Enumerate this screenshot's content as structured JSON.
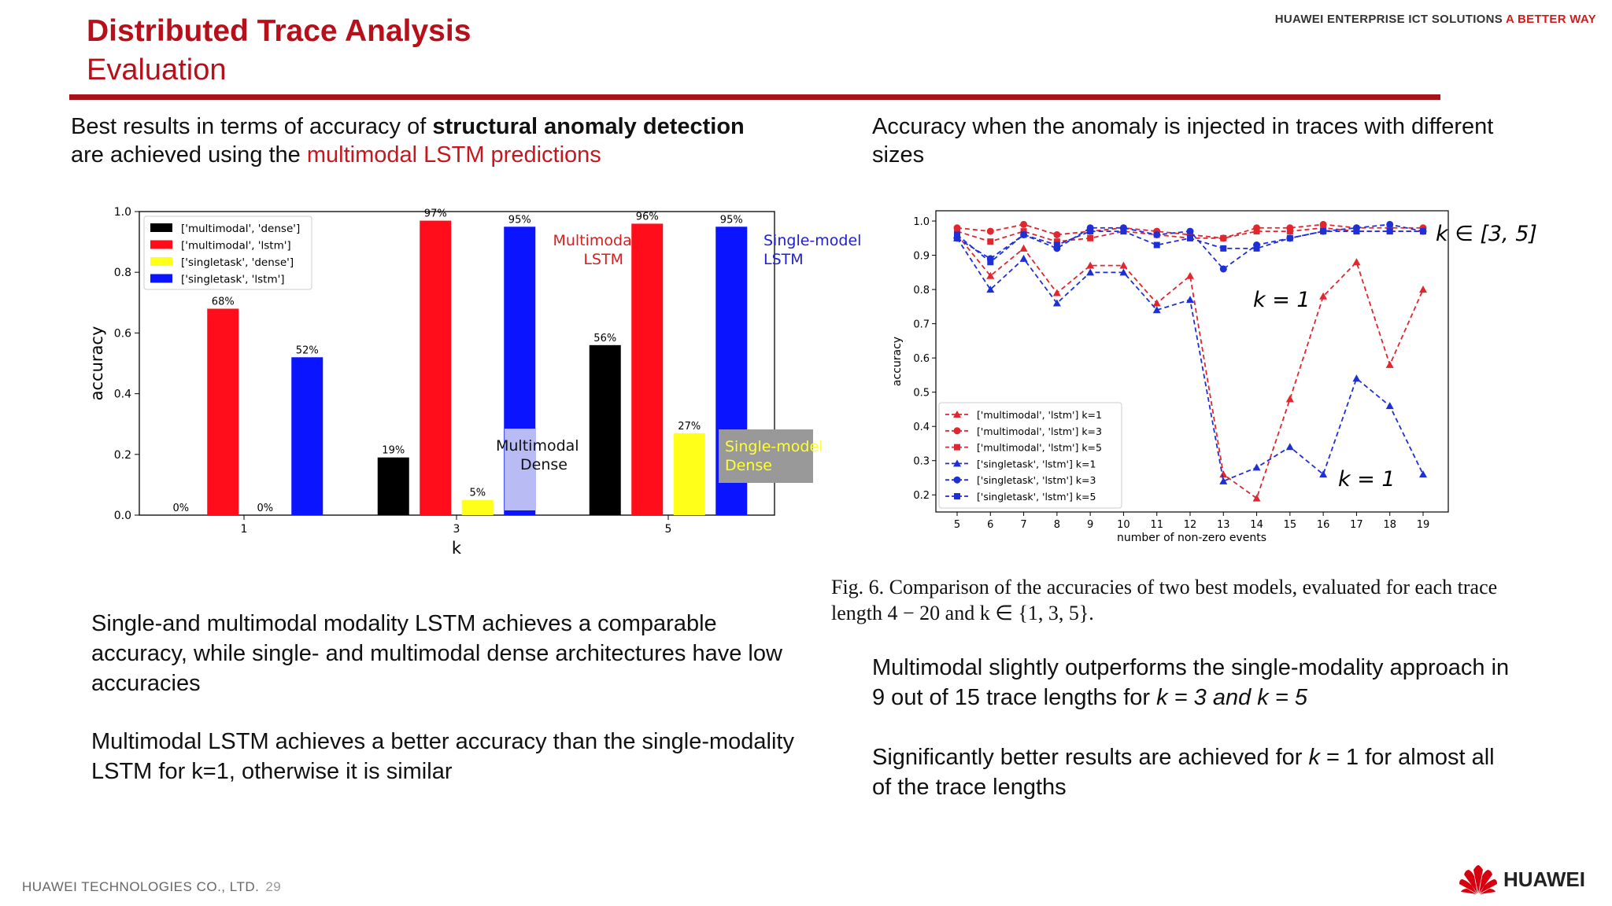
{
  "slide": {
    "title": "Distributed Trace Analysis",
    "subtitle": "Evaluation",
    "brand_top_prefix": "HUAWEI ENTERPRISE ICT SOLUTIONS ",
    "brand_top_highlight": "A BETTER WAY",
    "left_heading": {
      "p1": "Best results in terms of accuracy of ",
      "bold": "structural anomaly detection",
      "p2": " are achieved using the ",
      "red": "multimodal LSTM predictions"
    },
    "right_heading": "Accuracy when the anomaly is injected in traces with different sizes",
    "left_body_1": "Single-and multimodal modality LSTM achieves a comparable accuracy, while single- and multimodal dense architectures have low accuracies",
    "left_body_2": "Multimodal LSTM achieves a better accuracy than the single-modality LSTM for k=1, otherwise it is similar",
    "caption": "Fig. 6.  Comparison of the accuracies of two best models, evaluated for each trace length 4 − 20 and k ∈ {1, 3, 5}.",
    "right_body_1": {
      "p1": "Multimodal slightly outperforms the single-modality approach in 9 out of 15 trace lengths for ",
      "em": "k = 3 and k = 5"
    },
    "right_body_2": {
      "p1": "Significantly better results are achieved for ",
      "em": "k",
      "p2": " = 1 for almost all of the trace lengths"
    },
    "footer_company": "HUAWEI TECHNOLOGIES CO., LTD.",
    "page_number": "29",
    "logo_text": "HUAWEI"
  },
  "colors": {
    "brand_red": "#b8101a",
    "black": "#000000",
    "red": "#ff0d1a",
    "yellow": "#ffff1a",
    "blue": "#0a14ff",
    "line_red": "#e0262e",
    "line_blue": "#1f2fd6"
  },
  "chart_data": [
    {
      "type": "bar",
      "xlabel": "k",
      "ylabel": "accuracy",
      "ylim": [
        0,
        1.0
      ],
      "yticks": [
        "0.0",
        "0.2",
        "0.4",
        "0.6",
        "0.8",
        "1.0"
      ],
      "categories": [
        "1",
        "3",
        "5"
      ],
      "legend_position": "top-left",
      "series": [
        {
          "name": "['multimodal', 'dense']",
          "color": "#000000",
          "values": [
            0.0,
            0.19,
            0.56
          ],
          "labels": [
            "0%",
            "19%",
            "56%"
          ]
        },
        {
          "name": "['multimodal', 'lstm']",
          "color": "#ff0d1a",
          "values": [
            0.68,
            0.97,
            0.96
          ],
          "labels": [
            "68%",
            "97%",
            "96%"
          ]
        },
        {
          "name": "['singletask', 'dense']",
          "color": "#ffff1a",
          "values": [
            0.0,
            0.05,
            0.27
          ],
          "labels": [
            "0%",
            "5%",
            "27%"
          ]
        },
        {
          "name": "['singletask', 'lstm']",
          "color": "#0a14ff",
          "values": [
            0.52,
            0.95,
            0.95
          ],
          "labels": [
            "52%",
            "95%",
            "95%"
          ]
        }
      ],
      "annotations": [
        {
          "text": "Multimodal LSTM",
          "line1": "Multimodal",
          "line2": "LSTM",
          "color": "#d81e1e"
        },
        {
          "text": "Single-model LSTM",
          "line1": "Single-model",
          "line2": "LSTM",
          "color": "#2020d0"
        },
        {
          "text": "Multimodal Dense",
          "line1": "Multimodal",
          "line2": "Dense",
          "color": "#111111"
        },
        {
          "text": "Single-model Dense",
          "line1": "Single-model",
          "line2": "Dense",
          "color": "#ffff33"
        }
      ]
    },
    {
      "type": "line",
      "xlabel": "number of non-zero events",
      "ylabel": "accuracy",
      "ylim": [
        0.15,
        1.03
      ],
      "yticks": [
        "0.2",
        "0.3",
        "0.4",
        "0.5",
        "0.6",
        "0.7",
        "0.8",
        "0.9",
        "1.0"
      ],
      "x": [
        5,
        6,
        7,
        8,
        9,
        10,
        11,
        12,
        13,
        14,
        15,
        16,
        17,
        18,
        19
      ],
      "legend_position": "bottom-left",
      "series": [
        {
          "name": "['multimodal', 'lstm']  k=1",
          "color": "#e0262e",
          "marker": "triangle",
          "values": [
            0.96,
            0.84,
            0.92,
            0.79,
            0.87,
            0.87,
            0.76,
            0.84,
            0.26,
            0.19,
            0.48,
            0.78,
            0.88,
            0.58,
            0.8
          ]
        },
        {
          "name": "['multimodal', 'lstm']  k=3",
          "color": "#e0262e",
          "marker": "circle",
          "values": [
            0.98,
            0.97,
            0.99,
            0.96,
            0.97,
            0.98,
            0.97,
            0.96,
            0.95,
            0.98,
            0.98,
            0.99,
            0.98,
            0.98,
            0.98
          ]
        },
        {
          "name": "['multimodal', 'lstm']  k=5",
          "color": "#e0262e",
          "marker": "square",
          "values": [
            0.97,
            0.94,
            0.97,
            0.94,
            0.95,
            0.97,
            0.96,
            0.95,
            0.95,
            0.97,
            0.97,
            0.98,
            0.97,
            0.97,
            0.97
          ]
        },
        {
          "name": "['singletask', 'lstm']  k=1",
          "color": "#1f2fd6",
          "marker": "triangle",
          "values": [
            0.95,
            0.8,
            0.89,
            0.76,
            0.85,
            0.85,
            0.74,
            0.77,
            0.24,
            0.28,
            0.34,
            0.26,
            0.54,
            0.46,
            0.26
          ]
        },
        {
          "name": "['singletask', 'lstm']  k=3",
          "color": "#1f2fd6",
          "marker": "circle",
          "values": [
            0.95,
            0.89,
            0.96,
            0.92,
            0.98,
            0.98,
            0.96,
            0.97,
            0.86,
            0.93,
            0.95,
            0.97,
            0.98,
            0.99,
            0.97
          ]
        },
        {
          "name": "['singletask', 'lstm']  k=5",
          "color": "#1f2fd6",
          "marker": "square",
          "values": [
            0.96,
            0.88,
            0.96,
            0.93,
            0.97,
            0.97,
            0.93,
            0.95,
            0.92,
            0.92,
            0.95,
            0.97,
            0.97,
            0.97,
            0.97
          ]
        }
      ],
      "annotations": [
        {
          "text": "k ∈ [3, 5]"
        },
        {
          "text": "k = 1"
        },
        {
          "text": "k = 1"
        }
      ]
    }
  ]
}
